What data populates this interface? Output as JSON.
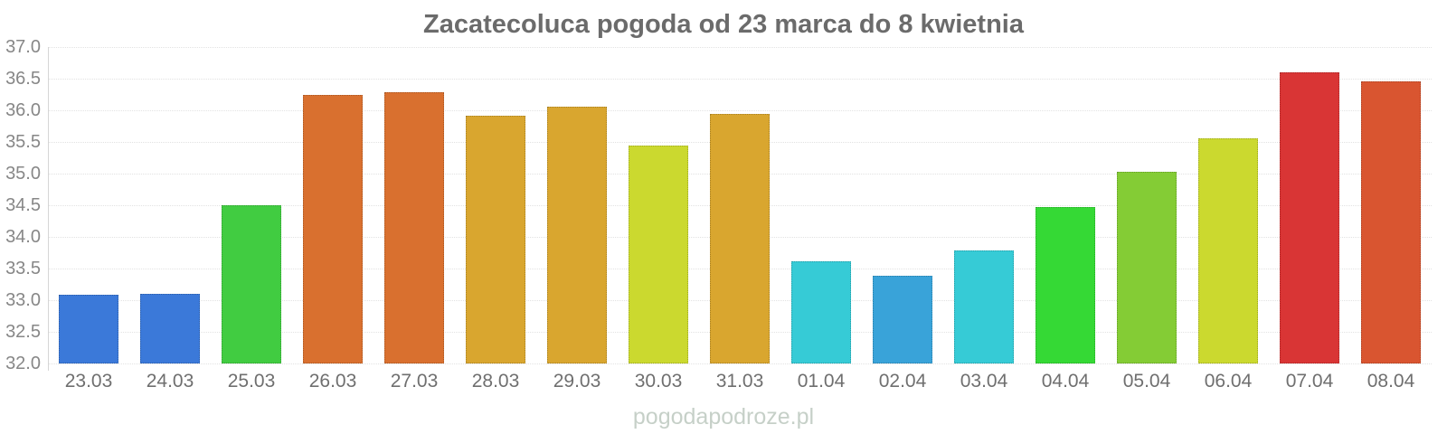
{
  "title": "Zacatecoluca pogoda od 23 marca do 8 kwietnia",
  "footer": "pogodapodroze.pl",
  "chart_data": {
    "type": "bar",
    "title": "Zacatecoluca pogoda od 23 marca do 8 kwietnia",
    "xlabel": "",
    "ylabel": "",
    "ylim": [
      32.0,
      37.0
    ],
    "ytick_step": 0.5,
    "yticks": [
      "37.0",
      "36.5",
      "36.0",
      "35.5",
      "35.0",
      "34.5",
      "34.0",
      "33.5",
      "33.0",
      "32.5",
      "32.0"
    ],
    "grid": true,
    "legend": "none",
    "categories": [
      "23.03",
      "24.03",
      "25.03",
      "26.03",
      "27.03",
      "28.03",
      "29.03",
      "30.03",
      "31.03",
      "01.04",
      "02.04",
      "03.04",
      "04.04",
      "05.04",
      "06.04",
      "07.04",
      "08.04"
    ],
    "values": [
      33.08,
      33.1,
      34.5,
      36.25,
      36.29,
      35.92,
      36.06,
      35.45,
      35.95,
      33.62,
      33.38,
      33.78,
      34.47,
      35.03,
      35.56,
      36.6,
      36.46
    ],
    "bar_colors": [
      "#3b79d9",
      "#3b79d9",
      "#41cc41",
      "#d9702f",
      "#d9702f",
      "#d9a62f",
      "#d9a62f",
      "#cbd92f",
      "#d9a62f",
      "#36cbd6",
      "#39a3d9",
      "#36cbd6",
      "#35d935",
      "#84cc35",
      "#cbd92f",
      "#d93535",
      "#d95530"
    ]
  },
  "colors": {
    "title_text": "#6b6b6b",
    "y_label_text": "#878787",
    "x_label_text": "#6f6f6f",
    "gridline": "#e2e2e2",
    "axis_line": "#d6d6d6",
    "watermark_text": "#c6d0c8",
    "background": "#ffffff"
  }
}
